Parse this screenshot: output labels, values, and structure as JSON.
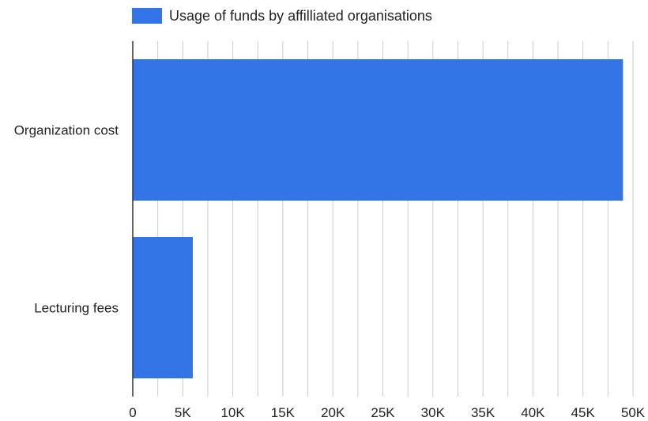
{
  "chart_data": {
    "type": "bar",
    "orientation": "horizontal",
    "categories": [
      "Organization cost",
      "Lecturing fees"
    ],
    "series": [
      {
        "name": "Usage of funds by affilliated organisations",
        "values": [
          49000,
          6000
        ],
        "color": "#3374e7"
      }
    ],
    "xlim": [
      0,
      50000
    ],
    "xticks": [
      0,
      5000,
      10000,
      15000,
      20000,
      25000,
      30000,
      35000,
      40000,
      45000,
      50000
    ],
    "xtick_labels": [
      "0",
      "5K",
      "10K",
      "15K",
      "20K",
      "25K",
      "30K",
      "35K",
      "40K",
      "45K",
      "50K"
    ],
    "grid": "vertical",
    "legend_position": "top-left"
  }
}
